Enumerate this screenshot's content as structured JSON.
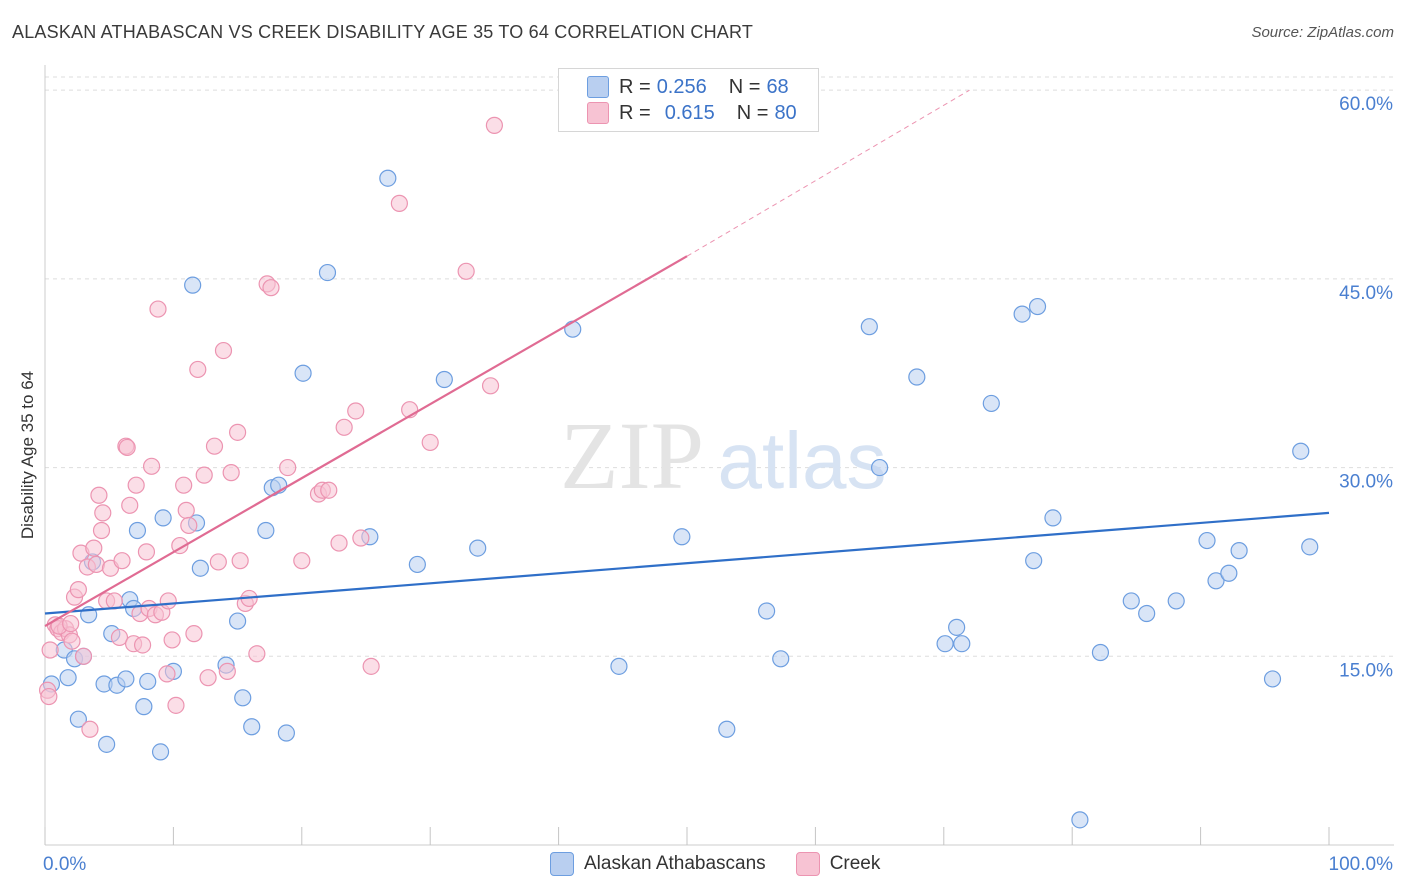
{
  "title": "ALASKAN ATHABASCAN VS CREEK DISABILITY AGE 35 TO 64 CORRELATION CHART",
  "source": "Source: ZipAtlas.com",
  "watermark": {
    "part1": "ZIP",
    "part2": "atlas"
  },
  "colors": {
    "blue_fill": "#b9cff0",
    "blue_stroke": "#6d9ee0",
    "blue_line": "#2f6fc8",
    "pink_fill": "#f7c3d3",
    "pink_stroke": "#ec94b1",
    "pink_line": "#e06b93",
    "tick_text": "#4a7fd0",
    "grid": "#dddddd"
  },
  "stats": [
    {
      "r_label": "R =",
      "r_value": "0.256",
      "n_label": "N =",
      "n_value": "68",
      "color": "#b9cff0"
    },
    {
      "r_label": "R =",
      "r_value": "0.615",
      "n_label": "N =",
      "n_value": "80",
      "color": "#f7c3d3"
    }
  ],
  "chart_data": {
    "type": "scatter",
    "title": "ALASKAN ATHABASCAN VS CREEK DISABILITY AGE 35 TO 64 CORRELATION CHART",
    "xlabel": "",
    "ylabel": "Disability Age 35 to 64",
    "xlim": [
      0,
      100
    ],
    "ylim": [
      0,
      62
    ],
    "x_tick_labels": [
      "0.0%",
      "100.0%"
    ],
    "y_ticks": [
      15,
      30,
      45,
      60
    ],
    "y_tick_labels": [
      "15.0%",
      "30.0%",
      "45.0%",
      "60.0%"
    ],
    "grid": true,
    "legend_position": "bottom-center",
    "series": [
      {
        "name": "Alaskan Athabascans",
        "color": "#6d9ee0",
        "trend": {
          "x": [
            0,
            100
          ],
          "y": [
            18.4,
            26.4
          ]
        },
        "points": [
          [
            1.5,
            15.5
          ],
          [
            1.8,
            13.3
          ],
          [
            2.3,
            14.8
          ],
          [
            2.6,
            10.0
          ],
          [
            3.4,
            18.3
          ],
          [
            3.0,
            15.0
          ],
          [
            3.7,
            22.5
          ],
          [
            4.6,
            12.8
          ],
          [
            4.8,
            8.0
          ],
          [
            5.2,
            16.8
          ],
          [
            5.6,
            12.7
          ],
          [
            6.3,
            13.2
          ],
          [
            6.6,
            19.5
          ],
          [
            6.9,
            18.8
          ],
          [
            7.2,
            25.0
          ],
          [
            7.7,
            11.0
          ],
          [
            8.0,
            13.0
          ],
          [
            9.0,
            7.4
          ],
          [
            9.2,
            26.0
          ],
          [
            10.0,
            13.8
          ],
          [
            11.5,
            44.5
          ],
          [
            11.8,
            25.6
          ],
          [
            12.1,
            22.0
          ],
          [
            14.1,
            14.3
          ],
          [
            15.0,
            17.8
          ],
          [
            15.4,
            11.7
          ],
          [
            16.1,
            9.4
          ],
          [
            17.2,
            25.0
          ],
          [
            17.7,
            28.4
          ],
          [
            18.2,
            28.6
          ],
          [
            18.8,
            8.9
          ],
          [
            20.1,
            37.5
          ],
          [
            22.0,
            45.5
          ],
          [
            25.3,
            24.5
          ],
          [
            26.7,
            53.0
          ],
          [
            29.0,
            22.3
          ],
          [
            31.1,
            37.0
          ],
          [
            33.7,
            23.6
          ],
          [
            41.1,
            41.0
          ],
          [
            44.7,
            14.2
          ],
          [
            49.6,
            24.5
          ],
          [
            53.1,
            9.2
          ],
          [
            56.2,
            18.6
          ],
          [
            57.3,
            14.8
          ],
          [
            64.2,
            41.2
          ],
          [
            65.0,
            30.0
          ],
          [
            67.9,
            37.2
          ],
          [
            70.1,
            16.0
          ],
          [
            71.4,
            16.0
          ],
          [
            71.0,
            17.3
          ],
          [
            73.7,
            35.1
          ],
          [
            76.1,
            42.2
          ],
          [
            77.0,
            22.6
          ],
          [
            77.3,
            42.8
          ],
          [
            78.5,
            26.0
          ],
          [
            80.6,
            2.0
          ],
          [
            82.2,
            15.3
          ],
          [
            84.6,
            19.4
          ],
          [
            85.8,
            18.4
          ],
          [
            88.1,
            19.4
          ],
          [
            90.5,
            24.2
          ],
          [
            91.2,
            21.0
          ],
          [
            92.2,
            21.6
          ],
          [
            93.0,
            23.4
          ],
          [
            95.6,
            13.2
          ],
          [
            97.8,
            31.3
          ],
          [
            98.5,
            23.7
          ],
          [
            0.5,
            12.8
          ]
        ]
      },
      {
        "name": "Creek",
        "color": "#ec94b1",
        "trend": {
          "x": [
            0,
            50
          ],
          "y": [
            17.4,
            46.8
          ]
        },
        "trend_extension": {
          "x": [
            50,
            72
          ],
          "y": [
            46.8,
            60.0
          ]
        },
        "points": [
          [
            0.2,
            12.3
          ],
          [
            0.4,
            15.5
          ],
          [
            0.8,
            17.5
          ],
          [
            1.0,
            17.2
          ],
          [
            1.3,
            16.9
          ],
          [
            1.6,
            17.2
          ],
          [
            1.9,
            16.7
          ],
          [
            2.1,
            16.2
          ],
          [
            2.3,
            19.7
          ],
          [
            2.6,
            20.3
          ],
          [
            2.8,
            23.2
          ],
          [
            3.0,
            15.0
          ],
          [
            3.3,
            22.1
          ],
          [
            3.5,
            9.2
          ],
          [
            3.8,
            23.6
          ],
          [
            4.0,
            22.3
          ],
          [
            4.2,
            27.8
          ],
          [
            4.4,
            25.0
          ],
          [
            4.5,
            26.4
          ],
          [
            4.8,
            19.4
          ],
          [
            5.1,
            22.0
          ],
          [
            5.4,
            19.4
          ],
          [
            5.8,
            16.5
          ],
          [
            6.0,
            22.6
          ],
          [
            6.3,
            31.7
          ],
          [
            6.4,
            31.6
          ],
          [
            6.6,
            27.0
          ],
          [
            6.9,
            16.0
          ],
          [
            7.1,
            28.6
          ],
          [
            7.4,
            18.4
          ],
          [
            7.6,
            15.9
          ],
          [
            7.9,
            23.3
          ],
          [
            8.1,
            18.8
          ],
          [
            8.3,
            30.1
          ],
          [
            8.6,
            18.3
          ],
          [
            8.8,
            42.6
          ],
          [
            9.1,
            18.5
          ],
          [
            9.5,
            13.6
          ],
          [
            9.9,
            16.3
          ],
          [
            10.2,
            11.1
          ],
          [
            10.5,
            23.8
          ],
          [
            10.8,
            28.6
          ],
          [
            11.0,
            26.6
          ],
          [
            11.2,
            25.4
          ],
          [
            11.6,
            16.8
          ],
          [
            11.9,
            37.8
          ],
          [
            12.4,
            29.4
          ],
          [
            12.7,
            13.3
          ],
          [
            13.2,
            31.7
          ],
          [
            13.5,
            22.5
          ],
          [
            13.9,
            39.3
          ],
          [
            14.2,
            13.8
          ],
          [
            14.5,
            29.6
          ],
          [
            15.0,
            32.8
          ],
          [
            15.2,
            22.6
          ],
          [
            15.6,
            19.2
          ],
          [
            15.9,
            19.6
          ],
          [
            16.5,
            15.2
          ],
          [
            17.3,
            44.6
          ],
          [
            17.6,
            44.3
          ],
          [
            18.9,
            30.0
          ],
          [
            20.0,
            22.6
          ],
          [
            21.3,
            27.9
          ],
          [
            21.6,
            28.2
          ],
          [
            22.1,
            28.2
          ],
          [
            22.9,
            24.0
          ],
          [
            23.3,
            33.2
          ],
          [
            24.2,
            34.5
          ],
          [
            24.6,
            24.4
          ],
          [
            25.4,
            14.2
          ],
          [
            27.6,
            51.0
          ],
          [
            28.4,
            34.6
          ],
          [
            30.0,
            32.0
          ],
          [
            32.8,
            45.6
          ],
          [
            34.7,
            36.5
          ],
          [
            35.0,
            57.2
          ],
          [
            0.3,
            11.8
          ],
          [
            1.1,
            17.4
          ],
          [
            2.0,
            17.6
          ],
          [
            9.6,
            19.4
          ]
        ]
      }
    ]
  }
}
